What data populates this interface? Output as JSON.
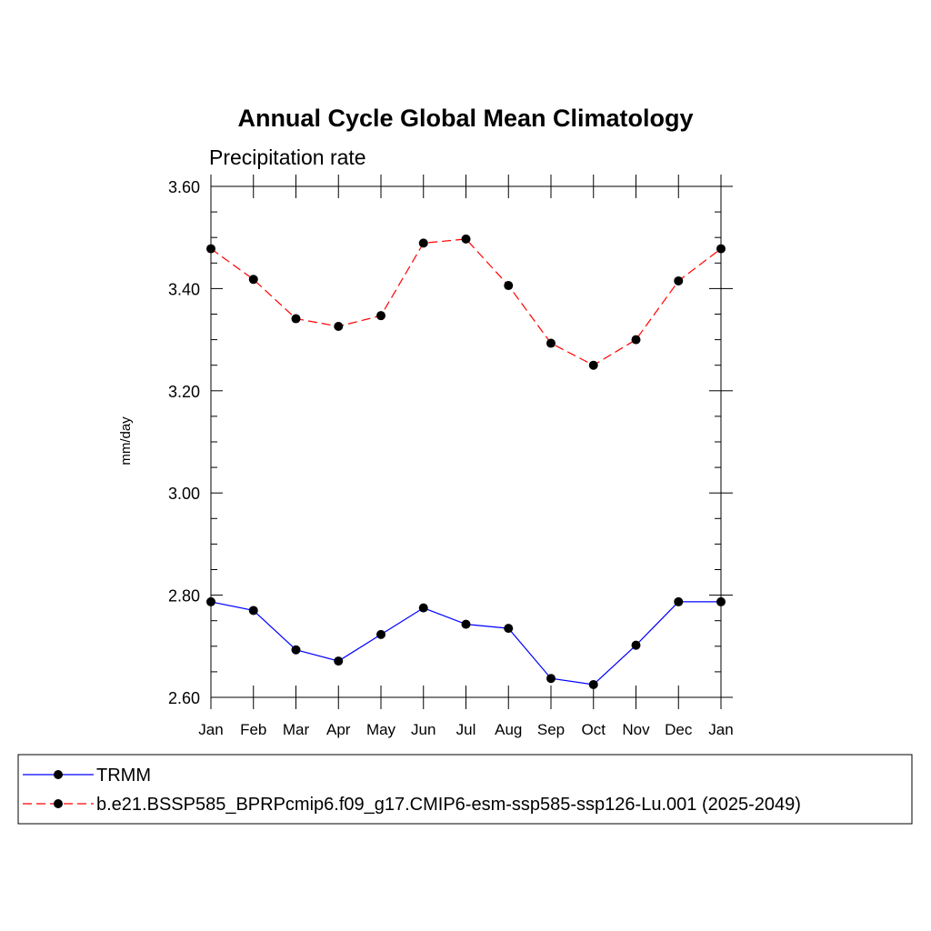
{
  "chart_data": {
    "type": "line",
    "title": "Annual Cycle Global Mean Climatology",
    "subtitle": "Precipitation rate",
    "xlabel": "",
    "ylabel": "mm/day",
    "ylim": [
      2.6,
      3.6
    ],
    "yticks": [
      "2.60",
      "2.80",
      "3.00",
      "3.20",
      "3.40",
      "3.60"
    ],
    "categories": [
      "Jan",
      "Feb",
      "Mar",
      "Apr",
      "May",
      "Jun",
      "Jul",
      "Aug",
      "Sep",
      "Oct",
      "Nov",
      "Dec",
      "Jan"
    ],
    "grid": false,
    "legend_position": "bottom",
    "series": [
      {
        "name": "TRMM",
        "color": "#0000ff",
        "dash": "solid",
        "values": [
          2.787,
          2.77,
          2.693,
          2.671,
          2.723,
          2.775,
          2.743,
          2.735,
          2.637,
          2.625,
          2.702,
          2.787,
          2.787
        ]
      },
      {
        "name": "b.e21.BSSP585_BPRPcmip6.f09_g17.CMIP6-esm-ssp585-ssp126-Lu.001 (2025-2049)",
        "color": "#ff0000",
        "dash": "dashed",
        "values": [
          3.478,
          3.418,
          3.341,
          3.326,
          3.347,
          3.489,
          3.497,
          3.406,
          3.293,
          3.25,
          3.3,
          3.415,
          3.478
        ]
      }
    ]
  }
}
